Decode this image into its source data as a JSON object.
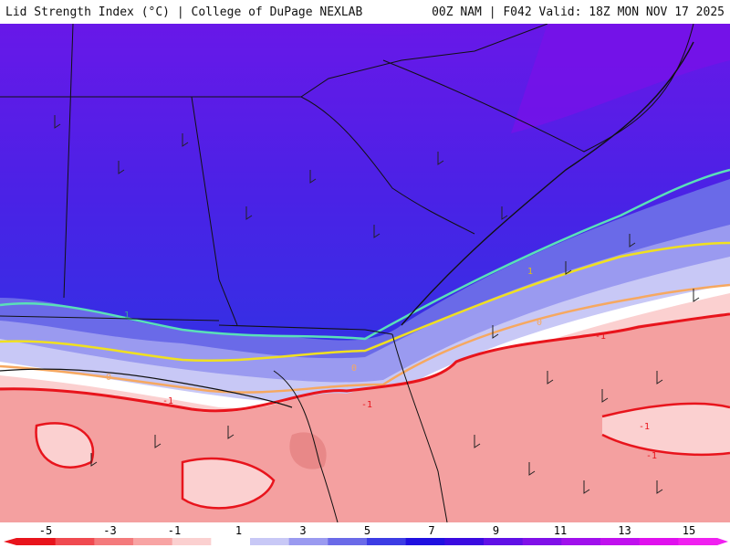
{
  "header": {
    "title": "Lid Strength Index (°C) | College of DuPage NEXLAB",
    "model_info": "00Z NAM | F042 Valid: 18Z MON NOV 17 2025"
  },
  "colorbar": {
    "ticks": [
      "-5",
      "-3",
      "-1",
      "1",
      "3",
      "5",
      "7",
      "9",
      "11",
      "13",
      "15"
    ],
    "colors": [
      "#e8141c",
      "#f04a50",
      "#f47a7c",
      "#f8a4a4",
      "#fbd0d0",
      "#ffffff",
      "#c8c8f6",
      "#9a9af0",
      "#6a6ae8",
      "#3c3ce4",
      "#2010e0",
      "#3a0ae0",
      "#6010e6",
      "#8010e8",
      "#a010ec",
      "#c010ee",
      "#e010ee",
      "#f020f0"
    ]
  },
  "map": {
    "contour_labels": [
      "-1",
      "-1",
      "-1",
      "-1",
      "-1",
      "0",
      "0",
      "0",
      "1",
      "1"
    ],
    "colors": {
      "deep_purple": "#6a10e6",
      "blue": "#3c28e6",
      "light_blue": "#9a9af0",
      "pale_pink": "#fbd0d0",
      "salmon": "#f4a0a0",
      "contour_red": "#e8141c",
      "contour_orange": "#f6a860",
      "contour_yellow": "#f0e020",
      "contour_teal": "#5ae0b8"
    }
  }
}
